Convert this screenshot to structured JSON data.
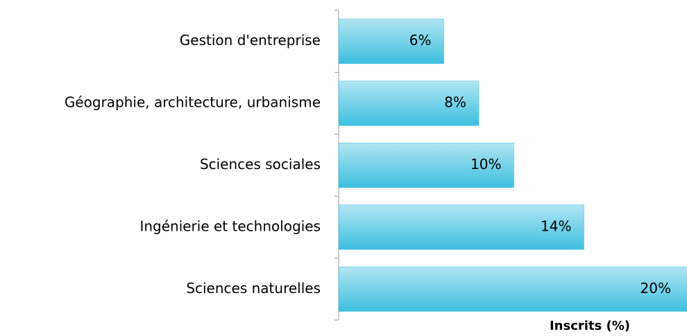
{
  "chart_data": {
    "type": "bar",
    "orientation": "horizontal",
    "x_label": "Inscrits (%)",
    "categories": [
      "Gestion d'entreprise",
      "Géographie, architecture, urbanisme",
      "Sciences sociales",
      "Ingénierie et technologies",
      "Sciences naturelles"
    ],
    "values": [
      6,
      8,
      10,
      14,
      20
    ],
    "value_labels": [
      "6%",
      "8%",
      "10%",
      "14%",
      "20%"
    ],
    "color": "#3dbfe0",
    "xlim": [
      0,
      20
    ]
  }
}
